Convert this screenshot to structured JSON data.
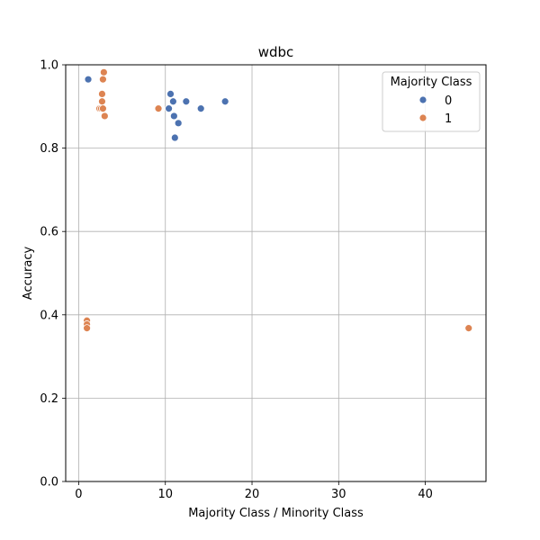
{
  "chart_data": {
    "type": "scatter",
    "title": "wdbc",
    "xlabel": "Majority Class / Minority Class",
    "ylabel": "Accuracy",
    "xlim": [
      -1.5,
      47
    ],
    "ylim": [
      0,
      1.0
    ],
    "xticks": [
      0,
      10,
      20,
      30,
      40
    ],
    "yticks": [
      0.0,
      0.2,
      0.4,
      0.6,
      0.8,
      1.0
    ],
    "xtick_labels": [
      "0",
      "10",
      "20",
      "30",
      "40"
    ],
    "ytick_labels": [
      "0.0",
      "0.2",
      "0.4",
      "0.6",
      "0.8",
      "1.0"
    ],
    "grid": true,
    "legend": {
      "title": "Majority Class",
      "placement": "top-right"
    },
    "series": [
      {
        "name": "0",
        "color": "#4c72b0",
        "points": [
          {
            "x": 1.1,
            "y": 0.965
          },
          {
            "x": 10.6,
            "y": 0.93
          },
          {
            "x": 10.9,
            "y": 0.912
          },
          {
            "x": 12.4,
            "y": 0.912
          },
          {
            "x": 16.9,
            "y": 0.912
          },
          {
            "x": 10.4,
            "y": 0.895
          },
          {
            "x": 14.1,
            "y": 0.895
          },
          {
            "x": 11.0,
            "y": 0.877
          },
          {
            "x": 11.5,
            "y": 0.86
          },
          {
            "x": 11.1,
            "y": 0.825
          }
        ]
      },
      {
        "name": "1",
        "color": "#dd8452",
        "points": [
          {
            "x": 2.9,
            "y": 0.982
          },
          {
            "x": 2.8,
            "y": 0.965
          },
          {
            "x": 2.7,
            "y": 0.93
          },
          {
            "x": 2.7,
            "y": 0.912
          },
          {
            "x": 2.4,
            "y": 0.895
          },
          {
            "x": 2.6,
            "y": 0.895
          },
          {
            "x": 2.8,
            "y": 0.895
          },
          {
            "x": 9.2,
            "y": 0.895
          },
          {
            "x": 3.0,
            "y": 0.877
          },
          {
            "x": 0.95,
            "y": 0.386
          },
          {
            "x": 0.95,
            "y": 0.377
          },
          {
            "x": 0.95,
            "y": 0.368
          },
          {
            "x": 45.0,
            "y": 0.368
          }
        ]
      }
    ]
  }
}
